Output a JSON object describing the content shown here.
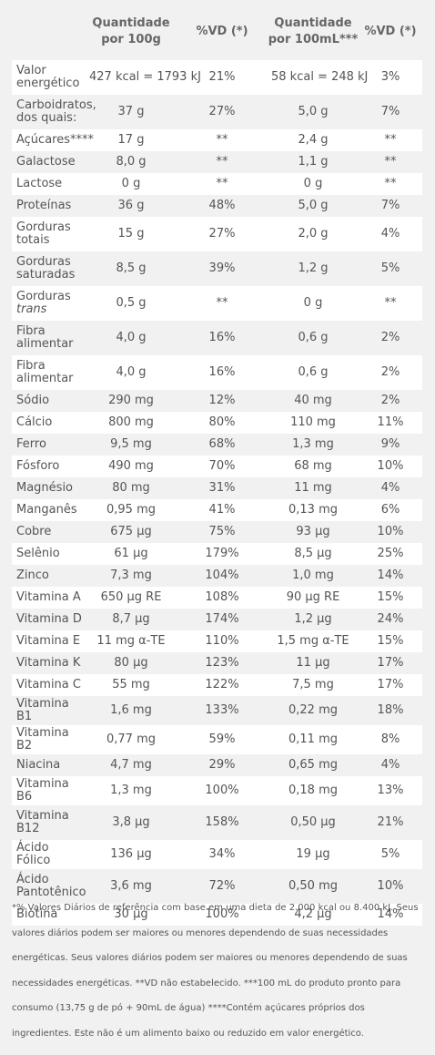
{
  "header": {
    "col0": "",
    "col1": "Quantidade por 100g",
    "col2": "%VD (*)",
    "col3": "Quantidade por 100mL***",
    "col4": "%VD (*)"
  },
  "rows": [
    {
      "name": "Valor energético",
      "qty100g": "427 kcal = 1793 kJ",
      "vd1": "21%",
      "qty100ml": "58 kcal = 248 kJ",
      "vd2": "3%"
    },
    {
      "name": "Carboidratos, dos quais:",
      "qty100g": "37 g",
      "vd1": "27%",
      "qty100ml": "5,0 g",
      "vd2": "7%"
    },
    {
      "name": "Açúcares****",
      "qty100g": "17 g",
      "vd1": "**",
      "qty100ml": "2,4 g",
      "vd2": "**"
    },
    {
      "name": "Galactose",
      "qty100g": "8,0 g",
      "vd1": "**",
      "qty100ml": "1,1 g",
      "vd2": "**"
    },
    {
      "name": "Lactose",
      "qty100g": "0 g",
      "vd1": "**",
      "qty100ml": "0 g",
      "vd2": "**"
    },
    {
      "name": "Proteínas",
      "qty100g": "36 g",
      "vd1": "48%",
      "qty100ml": "5,0 g",
      "vd2": "7%"
    },
    {
      "name": "Gorduras totais",
      "qty100g": "15 g",
      "vd1": "27%",
      "qty100ml": "2,0 g",
      "vd2": "4%"
    },
    {
      "name": "Gorduras saturadas",
      "qty100g": "8,5 g",
      "vd1": "39%",
      "qty100ml": "1,2 g",
      "vd2": "5%"
    },
    {
      "name": "Gorduras",
      "name_em": "trans",
      "qty100g": "0,5 g",
      "vd1": "**",
      "qty100ml": "0 g",
      "vd2": "**"
    },
    {
      "name": "Fibra alimentar",
      "qty100g": "4,0 g",
      "vd1": "16%",
      "qty100ml": "0,6 g",
      "vd2": "2%"
    },
    {
      "name": "Fibra alimentar",
      "qty100g": "4,0 g",
      "vd1": "16%",
      "qty100ml": "0,6 g",
      "vd2": "2%"
    },
    {
      "name": "Sódio",
      "qty100g": "290 mg",
      "vd1": "12%",
      "qty100ml": "40 mg",
      "vd2": "2%"
    },
    {
      "name": "Cálcio",
      "qty100g": "800 mg",
      "vd1": "80%",
      "qty100ml": "110 mg",
      "vd2": "11%"
    },
    {
      "name": "Ferro",
      "qty100g": "9,5 mg",
      "vd1": "68%",
      "qty100ml": "1,3 mg",
      "vd2": "9%"
    },
    {
      "name": "Fósforo",
      "qty100g": "490 mg",
      "vd1": "70%",
      "qty100ml": "68 mg",
      "vd2": "10%"
    },
    {
      "name": "Magnésio",
      "qty100g": "80 mg",
      "vd1": "31%",
      "qty100ml": "11 mg",
      "vd2": "4%"
    },
    {
      "name": "Manganês",
      "qty100g": "0,95 mg",
      "vd1": "41%",
      "qty100ml": "0,13 mg",
      "vd2": "6%"
    },
    {
      "name": "Cobre",
      "qty100g": "675 µg",
      "vd1": "75%",
      "qty100ml": "93 µg",
      "vd2": "10%"
    },
    {
      "name": "Selênio",
      "qty100g": "61 µg",
      "vd1": "179%",
      "qty100ml": "8,5 µg",
      "vd2": "25%"
    },
    {
      "name": "Zinco",
      "qty100g": "7,3 mg",
      "vd1": "104%",
      "qty100ml": "1,0 mg",
      "vd2": "14%"
    },
    {
      "name": "Vitamina A",
      "qty100g": "650 µg RE",
      "vd1": "108%",
      "qty100ml": "90 µg RE",
      "vd2": "15%"
    },
    {
      "name": "Vitamina D",
      "qty100g": "8,7 µg",
      "vd1": "174%",
      "qty100ml": "1,2 µg",
      "vd2": "24%"
    },
    {
      "name": "Vitamina E",
      "qty100g": "11 mg α-TE",
      "vd1": "110%",
      "qty100ml": "1,5 mg α-TE",
      "vd2": "15%"
    },
    {
      "name": "Vitamina K",
      "qty100g": "80 µg",
      "vd1": "123%",
      "qty100ml": "11 µg",
      "vd2": "17%"
    },
    {
      "name": "Vitamina C",
      "qty100g": "55 mg",
      "vd1": "122%",
      "qty100ml": "7,5 mg",
      "vd2": "17%"
    },
    {
      "name": "Vitamina B1",
      "qty100g": "1,6 mg",
      "vd1": "133%",
      "qty100ml": "0,22 mg",
      "vd2": "18%"
    },
    {
      "name": "Vitamina B2",
      "qty100g": "0,77 mg",
      "vd1": "59%",
      "qty100ml": "0,11 mg",
      "vd2": "8%"
    },
    {
      "name": "Niacina",
      "qty100g": "4,7 mg",
      "vd1": "29%",
      "qty100ml": "0,65 mg",
      "vd2": "4%"
    },
    {
      "name": "Vitamina B6",
      "qty100g": "1,3 mg",
      "vd1": "100%",
      "qty100ml": "0,18 mg",
      "vd2": "13%"
    },
    {
      "name": "Vitamina B12",
      "qty100g": "3,8 µg",
      "vd1": "158%",
      "qty100ml": "0,50 µg",
      "vd2": "21%"
    },
    {
      "name": "Ácido Fólico",
      "qty100g": "136 µg",
      "vd1": "34%",
      "qty100ml": "19 µg",
      "vd2": "5%"
    },
    {
      "name": "Ácido Pantotênico",
      "qty100g": "3,6 mg",
      "vd1": "72%",
      "qty100ml": "0,50 mg",
      "vd2": "10%"
    },
    {
      "name": "Biotina",
      "qty100g": "30 µg",
      "vd1": "100%",
      "qty100ml": "4,2 µg",
      "vd2": "14%"
    }
  ],
  "footnote": "*% Valores Diários de referência com base em uma dieta de 2.000 kcal ou 8.400 kJ. Seus valores diários podem ser maiores ou menores dependendo de suas necessidades energéticas. Seus valores diários podem ser maiores ou menores dependendo de suas necessidades energéticas. **VD não estabelecido. ***100 mL do produto pronto para consumo (13,75 g de pó + 90mL de água) ****Contém açúcares próprios dos ingredientes. Este não é um alimento baixo ou reduzido em valor energético."
}
